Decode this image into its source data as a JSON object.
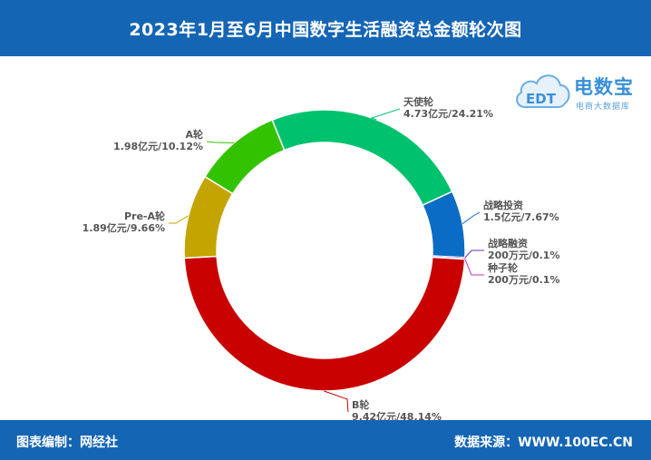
{
  "header": {
    "title": "2023年1月至6月中国数字生活融资总金额轮次图"
  },
  "footer": {
    "left": "图表编制：网经社",
    "right": "数据来源：WWW.100EC.CN"
  },
  "logo": {
    "brand": "电数宝",
    "sub": "电商大数据库",
    "badge": "EDT"
  },
  "chart_data": {
    "type": "pie",
    "donut": true,
    "title": "2023年1月至6月中国数字生活融资总金额轮次图",
    "slices": [
      {
        "name": "天使轮",
        "value_label": "4.73亿元/24.21%",
        "percent": 24.21,
        "color": "#00c26e"
      },
      {
        "name": "战略投资",
        "value_label": "1.5亿元/7.67%",
        "percent": 7.67,
        "color": "#0a6cc4"
      },
      {
        "name": "战略融资",
        "value_label": "200万元/0.1%",
        "percent": 0.1,
        "color": "#6a2ccc"
      },
      {
        "name": "种子轮",
        "value_label": "200万元/0.1%",
        "percent": 0.1,
        "color": "#cc33aa"
      },
      {
        "name": "B轮",
        "value_label": "9.42亿元/48.14%",
        "percent": 48.14,
        "color": "#c80000"
      },
      {
        "name": "Pre-A轮",
        "value_label": "1.89亿元/9.66%",
        "percent": 9.66,
        "color": "#c4a500"
      },
      {
        "name": "A轮",
        "value_label": "1.98亿元/10.12%",
        "percent": 10.12,
        "color": "#33c200"
      }
    ]
  }
}
